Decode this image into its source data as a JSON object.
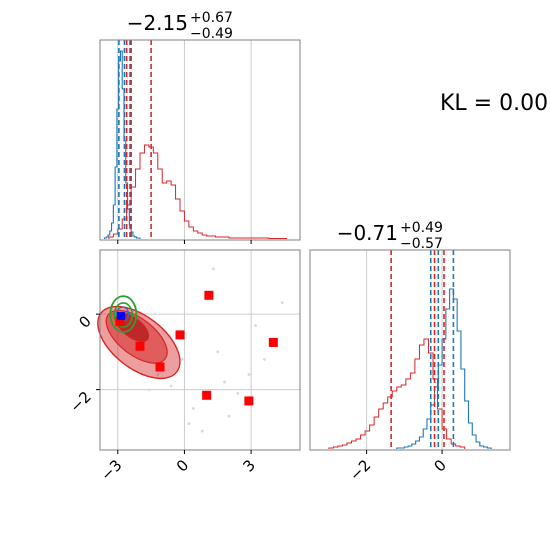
{
  "chart_data": {
    "type": "corner",
    "kl_label": "KL = 0.00",
    "parameters": [
      {
        "title_value": "−2.15",
        "title_plus": "+0.67",
        "title_minus": "−0.49",
        "tick_labels": [
          "−3",
          "0",
          "3"
        ],
        "ticks": [
          -3,
          0,
          3
        ],
        "range": [
          -3.8,
          5.2
        ]
      },
      {
        "title_value": "−0.71",
        "title_plus": "+0.49",
        "title_minus": "−0.57",
        "tick_labels": [
          "−2",
          "0"
        ],
        "ticks": [
          -2,
          0
        ],
        "range": [
          -3.5,
          1.8
        ]
      }
    ],
    "y_panel": {
      "tick_labels": [
        "0",
        "−2"
      ],
      "ticks": [
        0,
        -2
      ],
      "range": [
        -3.6,
        1.7
      ]
    },
    "series": [
      {
        "color": "#1f77b4",
        "marginal_1_quantiles": [
          -2.95,
          -2.7,
          -2.45
        ],
        "marginal_2_quantiles": [
          -0.3,
          -0.1,
          0.3
        ]
      },
      {
        "color": "#d62728",
        "marginal_1_quantiles": [
          -2.6,
          -2.4,
          -1.5
        ],
        "marginal_2_quantiles": [
          -1.35,
          -0.2,
          0.05
        ]
      }
    ],
    "truth_point": {
      "x": -2.85,
      "y": -0.05,
      "color": "#0000ff"
    },
    "scatter_points": [
      {
        "x": -2.9,
        "y": -0.2
      },
      {
        "x": -2.0,
        "y": -0.85
      },
      {
        "x": -1.1,
        "y": -1.4
      },
      {
        "x": -0.2,
        "y": -0.55
      },
      {
        "x": 1.1,
        "y": 0.5
      },
      {
        "x": 4.0,
        "y": -0.75
      },
      {
        "x": 1.0,
        "y": -2.15
      },
      {
        "x": 2.9,
        "y": -2.3
      }
    ],
    "colors": {
      "blue": "#1f77b4",
      "red": "#d62728",
      "green": "#2ca02c",
      "grid": "#cccccc",
      "frame": "#808080"
    }
  }
}
